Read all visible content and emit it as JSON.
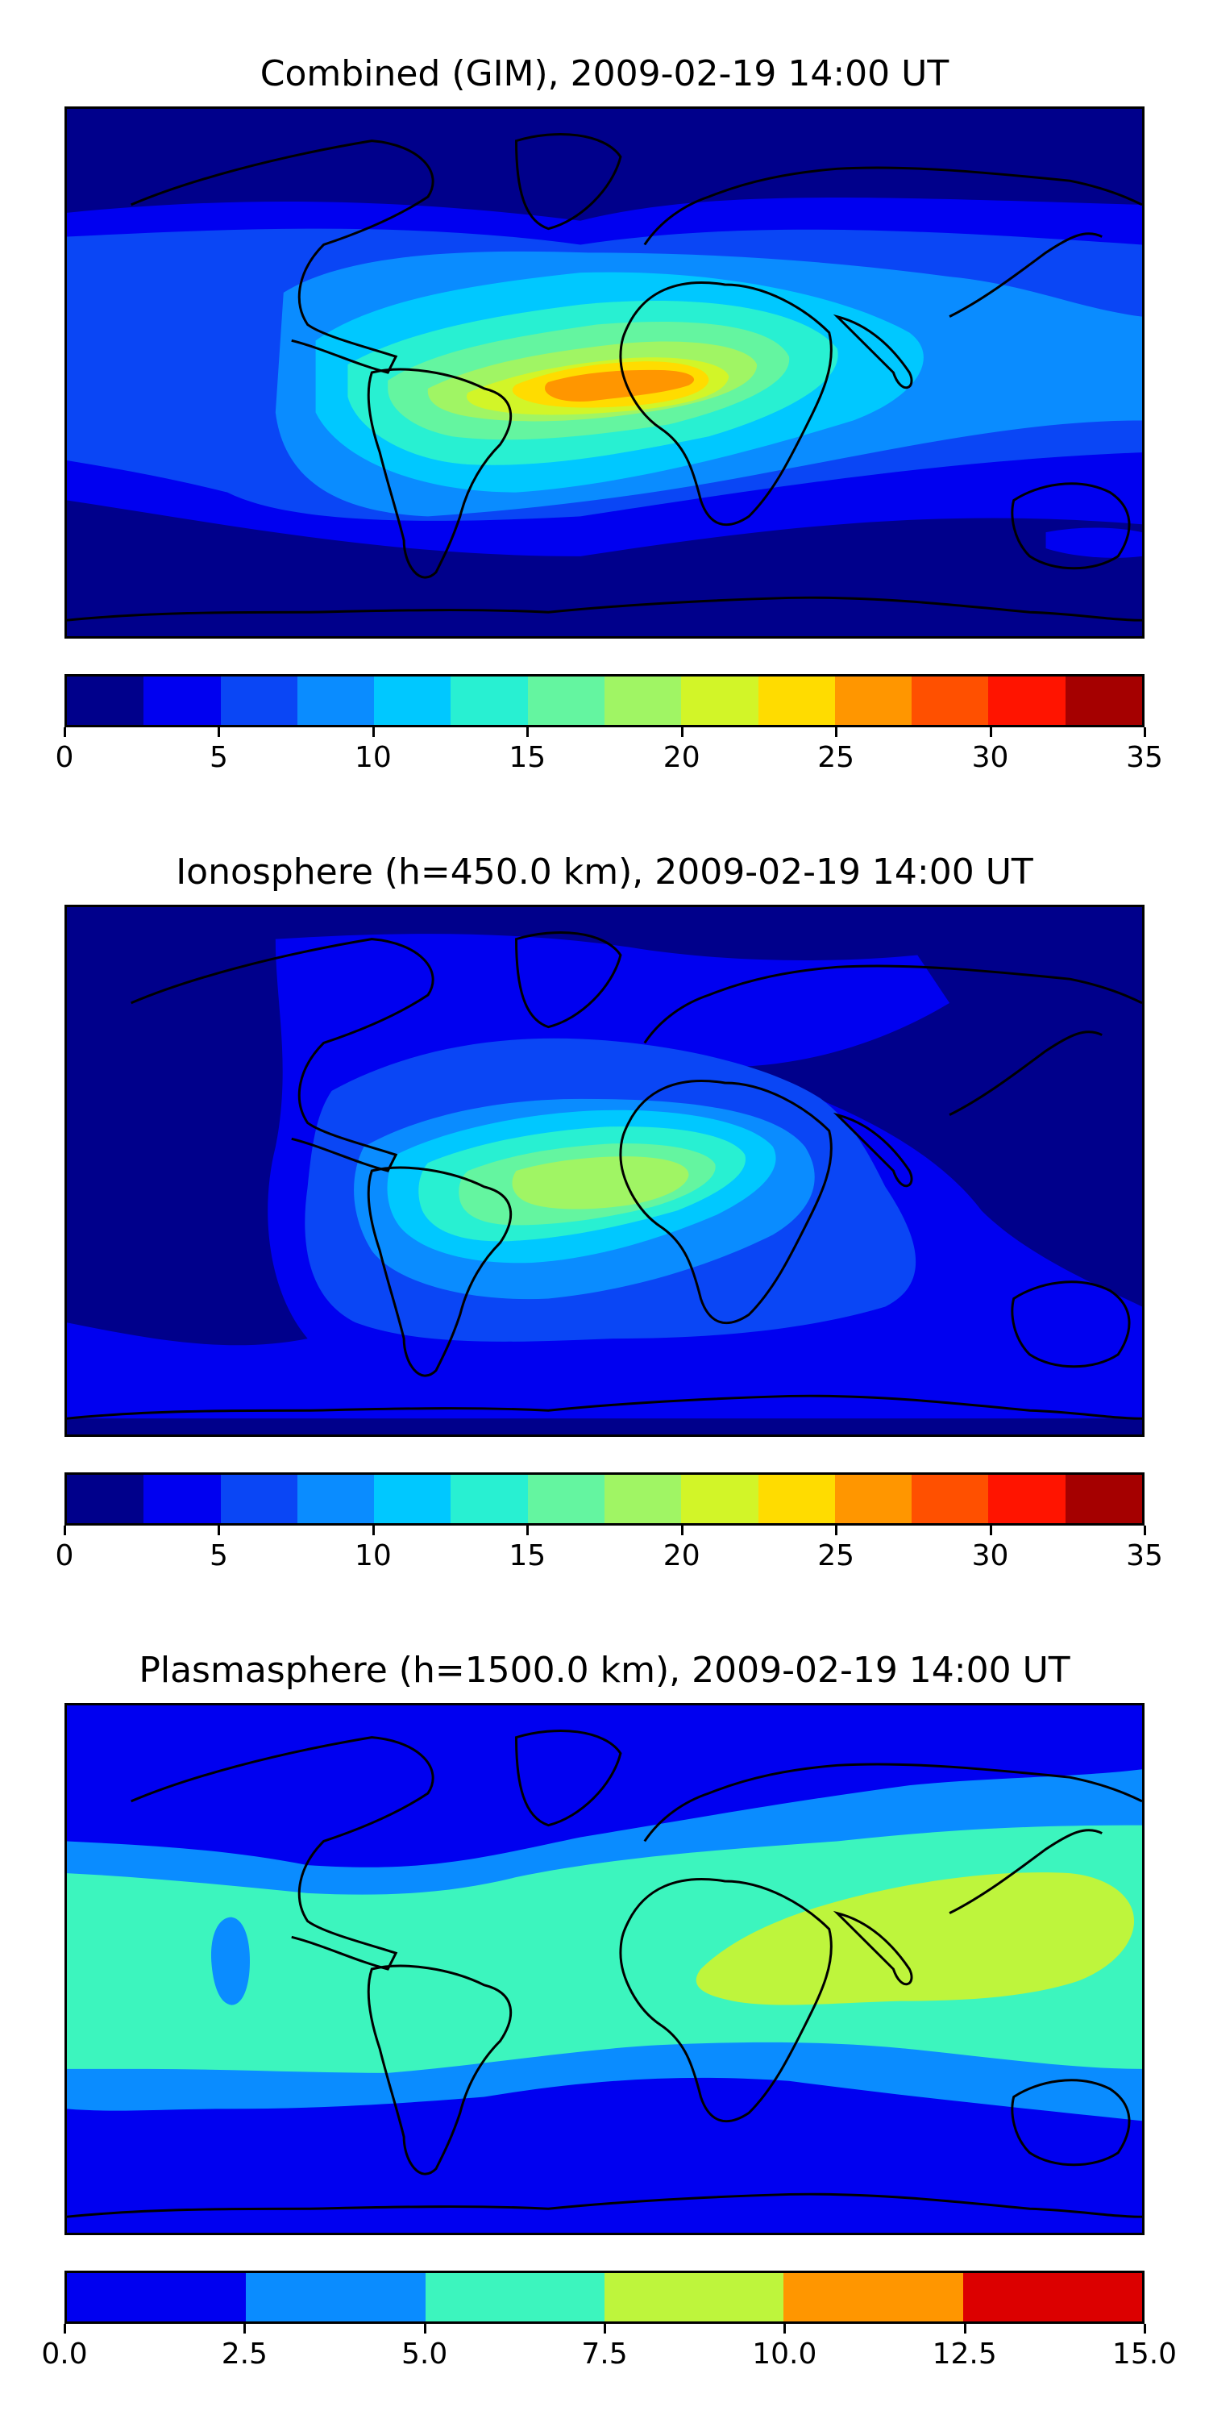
{
  "chart_data": [
    {
      "type": "heatmap",
      "title": "Combined (GIM), 2009-02-19 14:00 UT",
      "subject": "world map",
      "colorbar": {
        "min": 0,
        "max": 35,
        "boundaries": [
          0,
          2.5,
          5,
          7.5,
          10,
          12.5,
          15,
          17.5,
          20,
          22.5,
          25,
          27.5,
          30,
          32.5,
          35
        ],
        "tick_values": [
          0,
          5,
          10,
          15,
          20,
          25,
          30,
          35
        ],
        "tick_labels": [
          "0",
          "5",
          "10",
          "15",
          "20",
          "25",
          "30",
          "35"
        ],
        "colors": [
          "#00008b",
          "#0000f0",
          "#0a46f5",
          "#0a8cff",
          "#00c8ff",
          "#28f0d2",
          "#64f5a0",
          "#a0f564",
          "#d2f528",
          "#ffdc00",
          "#ff9600",
          "#ff5000",
          "#ff1400",
          "#a50000"
        ]
      },
      "max_value_approx": 27.5,
      "max_region": "equatorial Africa"
    },
    {
      "type": "heatmap",
      "title": "Ionosphere  (h=450.0 km), 2009-02-19 14:00 UT",
      "subject": "world map",
      "colorbar": {
        "min": 0,
        "max": 35,
        "boundaries": [
          0,
          2.5,
          5,
          7.5,
          10,
          12.5,
          15,
          17.5,
          20,
          22.5,
          25,
          27.5,
          30,
          32.5,
          35
        ],
        "tick_values": [
          0,
          5,
          10,
          15,
          20,
          25,
          30,
          35
        ],
        "tick_labels": [
          "0",
          "5",
          "10",
          "15",
          "20",
          "25",
          "30",
          "35"
        ],
        "colors": [
          "#00008b",
          "#0000f0",
          "#0a46f5",
          "#0a8cff",
          "#00c8ff",
          "#28f0d2",
          "#64f5a0",
          "#a0f564",
          "#d2f528",
          "#ffdc00",
          "#ff9600",
          "#ff5000",
          "#ff1400",
          "#a50000"
        ]
      },
      "max_value_approx": 20,
      "max_region": "equatorial Africa"
    },
    {
      "type": "heatmap",
      "title": "Plasmasphere (h=1500.0 km), 2009-02-19 14:00 UT",
      "subject": "world map",
      "colorbar": {
        "min": 0.0,
        "max": 15.0,
        "boundaries": [
          0.0,
          2.5,
          5.0,
          7.5,
          10.0,
          12.5,
          15.0
        ],
        "tick_values": [
          0.0,
          2.5,
          5.0,
          7.5,
          10.0,
          12.5,
          15.0
        ],
        "tick_labels": [
          "0.0",
          "2.5",
          "5.0",
          "7.5",
          "10.0",
          "12.5",
          "15.0"
        ],
        "colors": [
          "#0000f0",
          "#0a8cff",
          "#3cf5be",
          "#bef53c",
          "#ff9600",
          "#dc0000"
        ]
      },
      "max_value_approx": 10,
      "max_region": "Indian Ocean / SE Asia"
    }
  ]
}
